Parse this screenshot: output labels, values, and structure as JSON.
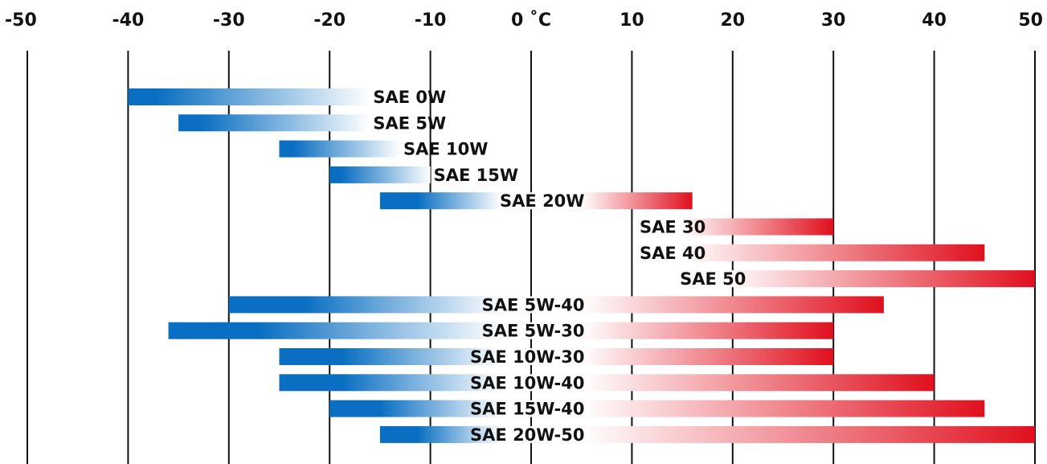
{
  "chart_data": {
    "type": "bar",
    "orientation": "horizontal",
    "title": "",
    "xlabel": "",
    "ylabel": "",
    "x_ticks": [
      "-50",
      "-40",
      "-30",
      "-20",
      "-10",
      "0 ˚C",
      "10",
      "20",
      "30",
      "40",
      "50"
    ],
    "xlim": [
      -50,
      50
    ],
    "grid": "vertical lines at each tick",
    "legend": "none",
    "cold_color": "#0a6fc2",
    "hot_color": "#e0101e",
    "series": [
      {
        "label": "SAE 0W",
        "start": -40,
        "end": -16
      },
      {
        "label": "SAE 5W",
        "start": -35,
        "end": -16
      },
      {
        "label": "SAE 10W",
        "start": -25,
        "end": -13
      },
      {
        "label": "SAE 15W",
        "start": -20,
        "end": -10
      },
      {
        "label": "SAE 20W",
        "start": -15,
        "end": 16
      },
      {
        "label": "SAE 30",
        "start": 15,
        "end": 30
      },
      {
        "label": "SAE 40",
        "start": 15,
        "end": 45
      },
      {
        "label": "SAE 50",
        "start": 19,
        "end": 50
      },
      {
        "label": "SAE 5W-40",
        "start": -30,
        "end": 35
      },
      {
        "label": "SAE 5W-30",
        "start": -36,
        "end": 30
      },
      {
        "label": "SAE 10W-30",
        "start": -25,
        "end": 30
      },
      {
        "label": "SAE 10W-40",
        "start": -25,
        "end": 40
      },
      {
        "label": "SAE 15W-40",
        "start": -20,
        "end": 45
      },
      {
        "label": "SAE 20W-50",
        "start": -15,
        "end": 50
      }
    ]
  }
}
